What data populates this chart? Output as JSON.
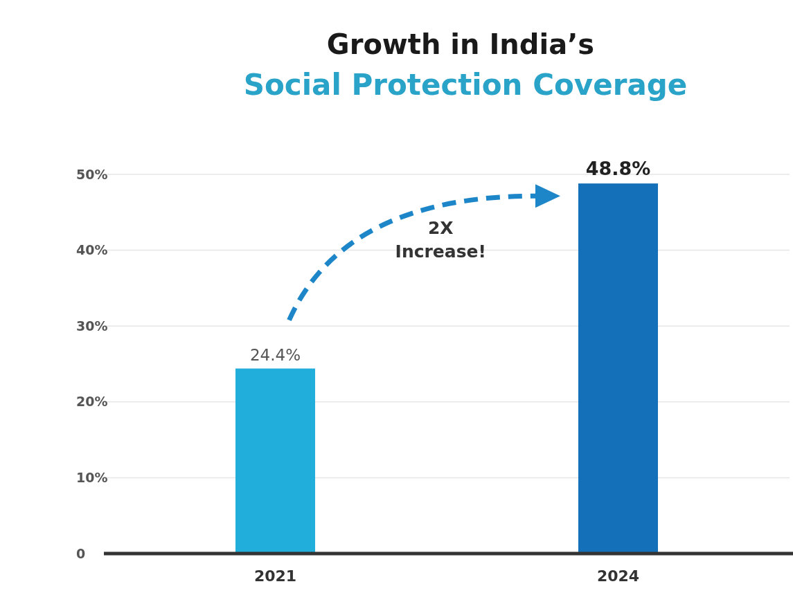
{
  "chart_data": {
    "type": "bar",
    "title": "Growth in India’s",
    "subtitle": "Social Protection Coverage",
    "categories": [
      "2021",
      "2024"
    ],
    "values": [
      24.4,
      48.8
    ],
    "colors": [
      "#22aedb",
      "#1470b8"
    ],
    "value_labels": [
      "24.4%",
      "48.8%"
    ],
    "ylim": [
      0,
      50
    ],
    "yticks": [
      {
        "value": 0,
        "label": "0"
      },
      {
        "value": 10,
        "label": "10%"
      },
      {
        "value": 20,
        "label": "20%"
      },
      {
        "value": 30,
        "label": "30%"
      },
      {
        "value": 40,
        "label": "40%"
      },
      {
        "value": 50,
        "label": "50%"
      }
    ],
    "grid": "y",
    "annotations": [
      "2X Increase!"
    ]
  }
}
